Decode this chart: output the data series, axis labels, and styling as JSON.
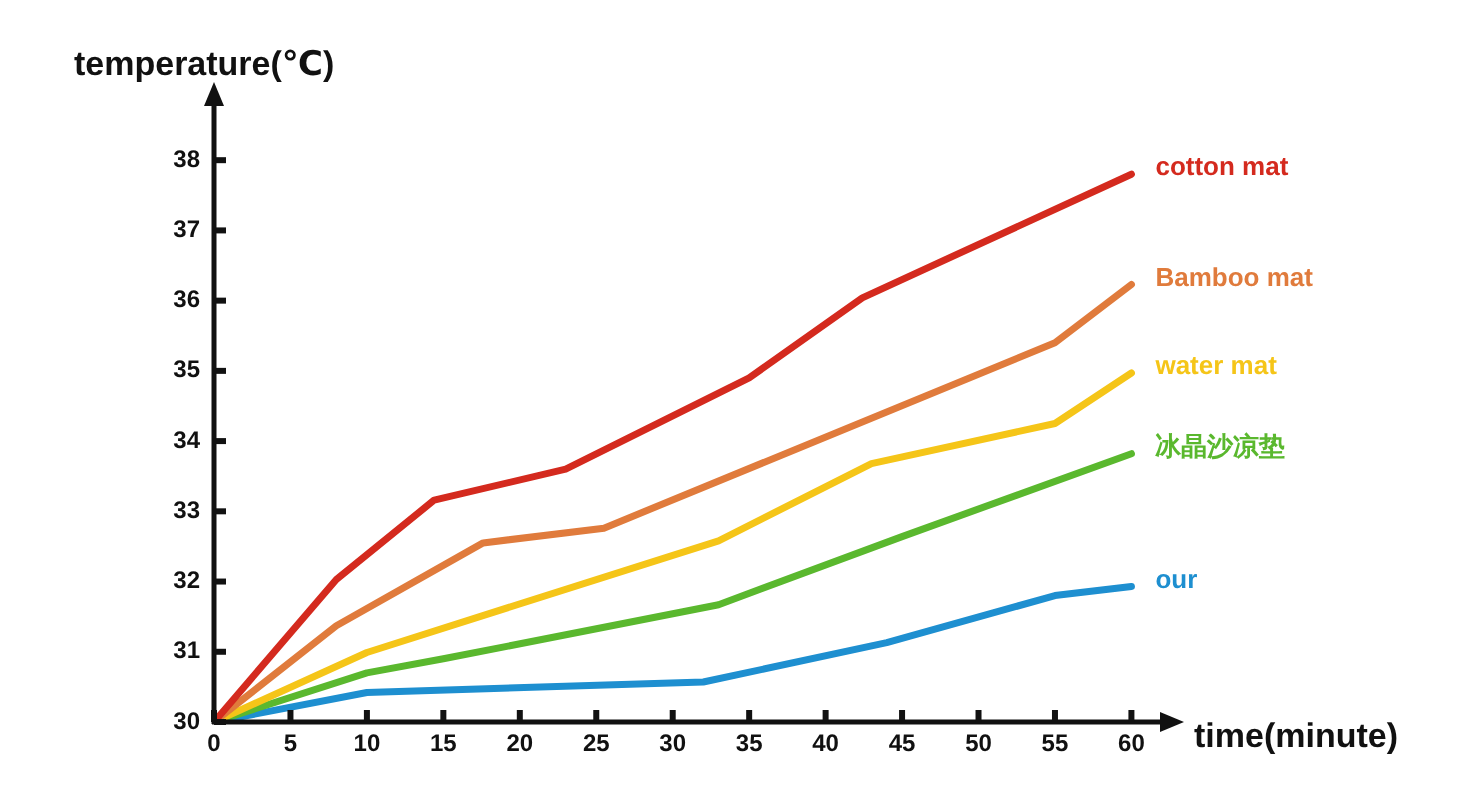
{
  "chart_data": {
    "type": "line",
    "xlabel": "time(minute)",
    "ylabel": "temperature(℃)",
    "xlim": [
      0,
      62
    ],
    "xticks": [
      0,
      5,
      10,
      15,
      20,
      25,
      30,
      35,
      40,
      45,
      50,
      55,
      60
    ],
    "ylim": [
      30,
      38.8
    ],
    "yticks": [
      30,
      31,
      32,
      33,
      34,
      35,
      36,
      37,
      38
    ],
    "grid": false,
    "legend": false,
    "marker": "none",
    "line_style": "solid",
    "series": [
      {
        "name": "cotton mat",
        "color": "#d42a1e",
        "x": [
          0,
          8,
          14.4,
          23,
          35,
          42.4,
          60
        ],
        "values": [
          30,
          32.03,
          33.16,
          33.6,
          34.9,
          36.04,
          37.8
        ]
      },
      {
        "name": "Bamboo mat",
        "color": "#e07b3c",
        "x": [
          0,
          8,
          17.6,
          25.5,
          55,
          60
        ],
        "values": [
          30,
          31.37,
          32.55,
          32.76,
          35.4,
          36.23
        ]
      },
      {
        "name": "water mat",
        "color": "#f5c518",
        "x": [
          0,
          10,
          33,
          43,
          55,
          60
        ],
        "values": [
          30,
          30.99,
          32.58,
          33.68,
          34.25,
          34.97
        ]
      },
      {
        "name": "冰晶沙凉垫",
        "color": "#5ab82e",
        "x": [
          0,
          10,
          15,
          33,
          45,
          60
        ],
        "values": [
          30,
          30.7,
          30.9,
          31.67,
          32.64,
          33.82
        ]
      },
      {
        "name": "our",
        "color": "#1e8fd0",
        "x": [
          0,
          10,
          32,
          44,
          55,
          60
        ],
        "values": [
          30,
          30.42,
          30.57,
          31.13,
          31.8,
          31.93
        ]
      }
    ]
  }
}
